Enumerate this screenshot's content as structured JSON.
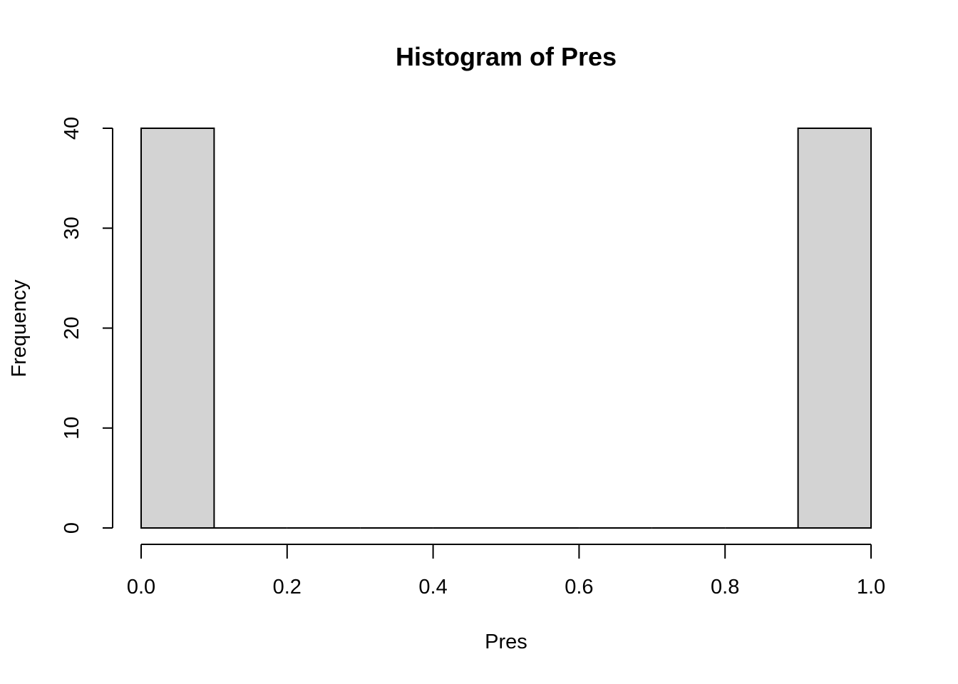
{
  "chart_data": {
    "type": "bar",
    "title": "Histogram of Pres",
    "xlabel": "Pres",
    "ylabel": "Frequency",
    "bins": [
      {
        "start": 0.0,
        "end": 0.1,
        "count": 40
      },
      {
        "start": 0.1,
        "end": 0.2,
        "count": 0
      },
      {
        "start": 0.2,
        "end": 0.3,
        "count": 0
      },
      {
        "start": 0.3,
        "end": 0.4,
        "count": 0
      },
      {
        "start": 0.4,
        "end": 0.5,
        "count": 0
      },
      {
        "start": 0.5,
        "end": 0.6,
        "count": 0
      },
      {
        "start": 0.6,
        "end": 0.7,
        "count": 0
      },
      {
        "start": 0.7,
        "end": 0.8,
        "count": 0
      },
      {
        "start": 0.8,
        "end": 0.9,
        "count": 0
      },
      {
        "start": 0.9,
        "end": 1.0,
        "count": 40
      }
    ],
    "xlim": [
      0.0,
      1.0
    ],
    "ylim": [
      0,
      40
    ],
    "xticks": [
      "0.0",
      "0.2",
      "0.4",
      "0.6",
      "0.8",
      "1.0"
    ],
    "yticks": [
      "0",
      "10",
      "20",
      "30",
      "40"
    ],
    "grid": false,
    "bar_color": "#d3d3d3"
  }
}
